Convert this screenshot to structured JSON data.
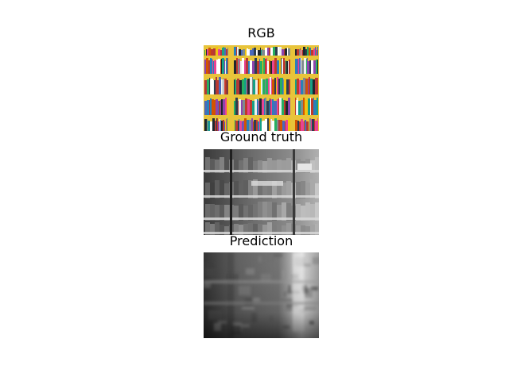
{
  "figure": {
    "panels": [
      {
        "title": "RGB",
        "content": "color-photo-of-bookshelf"
      },
      {
        "title": "Ground truth",
        "content": "grayscale-depth-map"
      },
      {
        "title": "Prediction",
        "content": "grayscale-predicted-depth-map"
      }
    ],
    "colors": {
      "background": "#ffffff",
      "shelf": "#e8c43a",
      "text": "#000000"
    }
  }
}
